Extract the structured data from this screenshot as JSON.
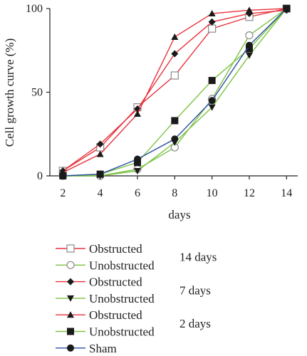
{
  "chart_data": {
    "type": "line",
    "title": "",
    "xlabel": "days",
    "ylabel": "Cell growth curve (%)",
    "x": [
      2,
      4,
      6,
      8,
      10,
      12,
      14
    ],
    "xlim": [
      1.3,
      14.6
    ],
    "ylim": [
      0,
      100
    ],
    "xticks": [
      "2",
      "4",
      "6",
      "8",
      "10",
      "12",
      "14"
    ],
    "yticks": [
      "0",
      "50",
      "100"
    ],
    "grid": false,
    "legend_position": "bottom",
    "series": [
      {
        "name": "Obstructed",
        "group": "14 days",
        "color": "#e8323c",
        "marker": "open-square",
        "values": [
          3,
          17,
          41,
          60,
          88,
          95,
          100
        ]
      },
      {
        "name": "Unobstructed",
        "group": "14 days",
        "color": "#7cc242",
        "marker": "open-circle",
        "values": [
          0,
          0,
          4,
          17,
          46,
          84,
          100
        ]
      },
      {
        "name": "Obstructed",
        "group": "7 days",
        "color": "#e8323c",
        "marker": "diamond",
        "values": [
          3,
          19,
          40,
          73,
          92,
          97,
          99
        ]
      },
      {
        "name": "Unobstructed",
        "group": "7 days",
        "color": "#7cc242",
        "marker": "triangle-down",
        "values": [
          0,
          0,
          3,
          20,
          41,
          72,
          100
        ]
      },
      {
        "name": "Obstructed",
        "group": "2 days",
        "color": "#e8323c",
        "marker": "triangle-up",
        "values": [
          2,
          13,
          37,
          83,
          97,
          99,
          100
        ]
      },
      {
        "name": "Unobstructed",
        "group": "2 days",
        "color": "#7cc242",
        "marker": "square",
        "values": [
          0,
          1,
          8,
          33,
          57,
          76,
          100
        ]
      },
      {
        "name": "Sham",
        "group": "",
        "color": "#2b4ea2",
        "marker": "circle",
        "values": [
          0,
          1,
          10,
          22,
          45,
          78,
          100
        ]
      }
    ],
    "legend_groups": [
      "14 days",
      "7 days",
      "2 days"
    ]
  }
}
